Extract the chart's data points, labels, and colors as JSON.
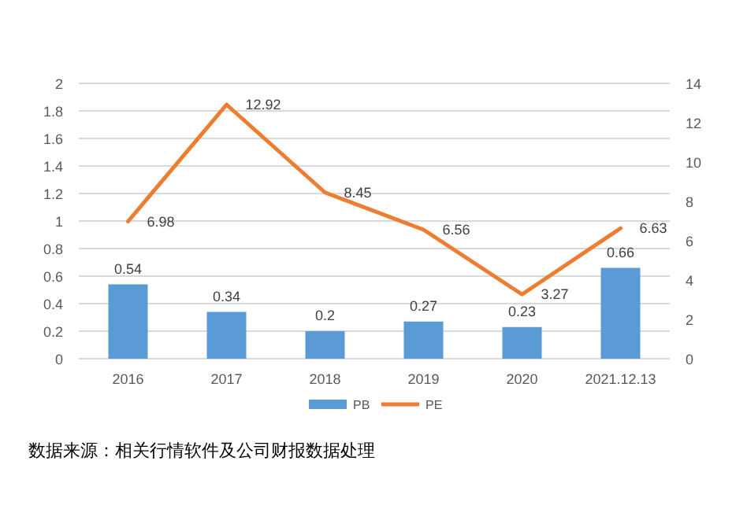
{
  "chart_data": {
    "type": "bar",
    "categories": [
      "2016",
      "2017",
      "2018",
      "2019",
      "2020",
      "2021.12.13"
    ],
    "series": [
      {
        "name": "PB",
        "color": "#5b9bd5",
        "values": [
          0.54,
          0.34,
          0.2,
          0.27,
          0.23,
          0.66
        ]
      },
      {
        "name": "PE",
        "type": "line",
        "axis": "y2",
        "color": "#ed7d31",
        "values": [
          6.98,
          12.92,
          8.45,
          6.56,
          3.27,
          6.63
        ]
      }
    ],
    "ylim": [
      0,
      2
    ],
    "yticks": [
      0,
      0.2,
      0.4,
      0.6,
      0.8,
      1,
      1.2,
      1.4,
      1.6,
      1.8,
      2
    ],
    "y2lim": [
      0,
      14
    ],
    "y2ticks": [
      0,
      2,
      4,
      6,
      8,
      10,
      12,
      14
    ],
    "data_labels": true,
    "grid": "y",
    "legend": "bottom",
    "annotations": [
      "数据来源：相关行情软件及公司财报数据处理"
    ]
  }
}
